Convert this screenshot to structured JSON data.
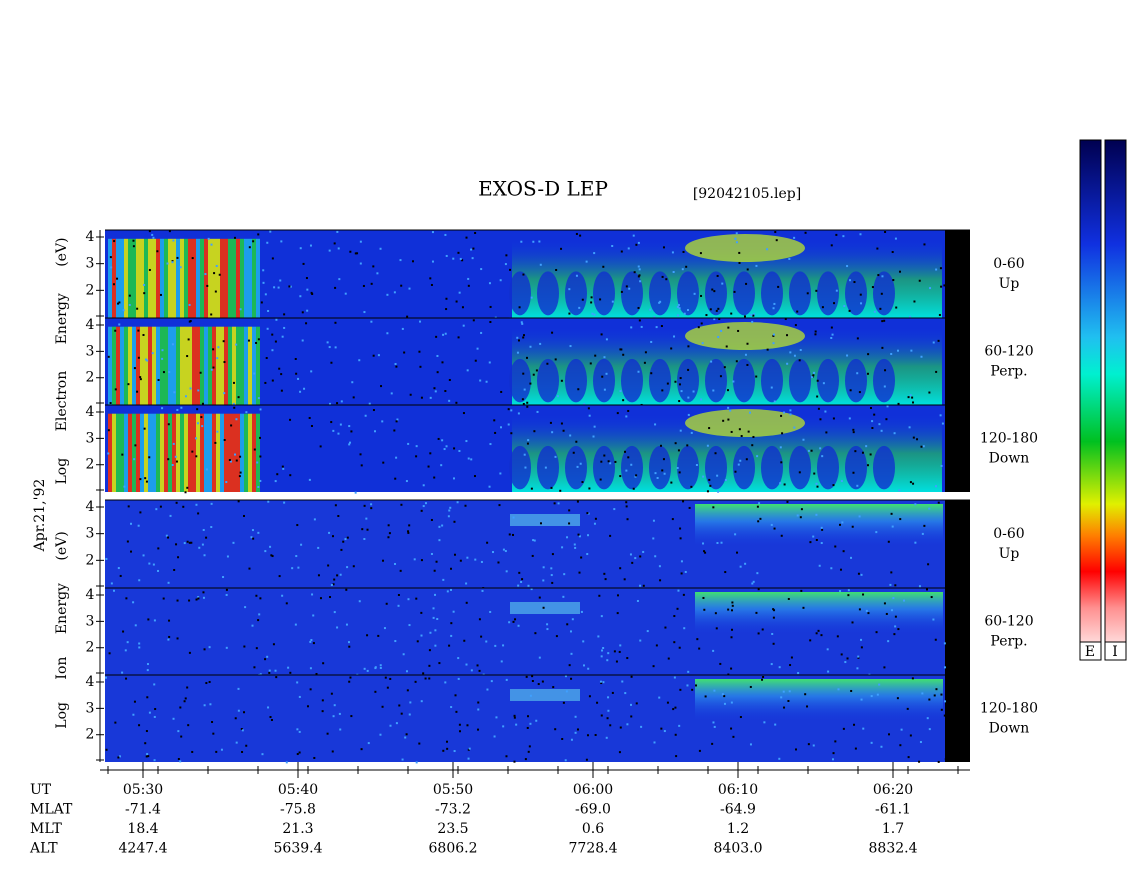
{
  "header": {
    "title": "EXOS-D LEP",
    "file": "[92042105.lep]"
  },
  "left_labels": {
    "electron": "Log Electron Energy (eV)",
    "date": "Apr.21,'92",
    "ion": "Log Ion Energy (eV)"
  },
  "energy_ticks": [
    "4",
    "3",
    "2"
  ],
  "panels": [
    {
      "range": "0-60",
      "direction": "Up"
    },
    {
      "range": "60-120",
      "direction": "Perp."
    },
    {
      "range": "120-180",
      "direction": "Down"
    },
    {
      "range": "0-60",
      "direction": "Up"
    },
    {
      "range": "60-120",
      "direction": "Perp."
    },
    {
      "range": "120-180",
      "direction": "Down"
    }
  ],
  "time_axis": {
    "rows": [
      {
        "label": "UT",
        "values": [
          "05:30",
          "05:40",
          "05:50",
          "06:00",
          "06:10",
          "06:20"
        ]
      },
      {
        "label": "MLAT",
        "values": [
          "-71.4",
          "-75.8",
          "-73.2",
          "-69.0",
          "-64.9",
          "-61.1"
        ]
      },
      {
        "label": "MLT",
        "values": [
          "18.4",
          "21.3",
          "23.5",
          "0.6",
          "1.2",
          "1.7"
        ]
      },
      {
        "label": "ALT",
        "values": [
          "4247.4",
          "5639.4",
          "6806.2",
          "7728.4",
          "8403.0",
          "8832.4"
        ]
      }
    ]
  },
  "colorbars": [
    "E",
    "I"
  ]
}
